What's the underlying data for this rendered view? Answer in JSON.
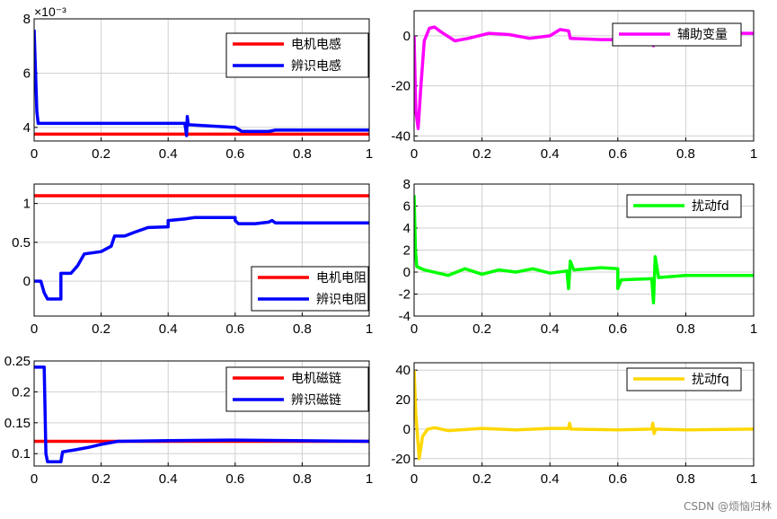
{
  "watermark": "CSDN @烦恼归林",
  "chart_data": [
    {
      "type": "line",
      "xlim": [
        0,
        1
      ],
      "ylim": [
        3.5,
        8
      ],
      "xticks": [
        "0",
        "0.2",
        "0.4",
        "0.6",
        "0.8",
        "1"
      ],
      "yticks": [
        "4",
        "6",
        "8"
      ],
      "ytick_values": [
        4,
        6,
        8
      ],
      "yexponent": "×10⁻³",
      "grid": true,
      "legend_position": "top-right",
      "series": [
        {
          "name": "电机电感",
          "color": "#ff0000",
          "points": [
            [
              0,
              3.75
            ],
            [
              1,
              3.75
            ]
          ]
        },
        {
          "name": "辨识电感",
          "color": "#0000ff",
          "points": [
            [
              0,
              7.6
            ],
            [
              0.003,
              6.5
            ],
            [
              0.008,
              4.6
            ],
            [
              0.012,
              4.15
            ],
            [
              0.45,
              4.15
            ],
            [
              0.455,
              3.7
            ],
            [
              0.457,
              4.4
            ],
            [
              0.46,
              4.1
            ],
            [
              0.6,
              4.0
            ],
            [
              0.62,
              3.85
            ],
            [
              0.7,
              3.85
            ],
            [
              0.72,
              3.9
            ],
            [
              1,
              3.9
            ]
          ]
        }
      ]
    },
    {
      "type": "line",
      "xlim": [
        0,
        1
      ],
      "ylim": [
        -42,
        10
      ],
      "xticks": [
        "0",
        "0.2",
        "0.4",
        "0.6",
        "0.8",
        "1"
      ],
      "yticks": [
        "-40",
        "-20",
        "0"
      ],
      "ytick_values": [
        -40,
        -20,
        0
      ],
      "grid": true,
      "legend_position": "top-right",
      "series": [
        {
          "name": "辅助变量",
          "color": "#ff00ff",
          "points": [
            [
              0,
              0
            ],
            [
              0.005,
              -30
            ],
            [
              0.012,
              -37
            ],
            [
              0.02,
              -20
            ],
            [
              0.03,
              -2
            ],
            [
              0.045,
              3
            ],
            [
              0.06,
              3.5
            ],
            [
              0.08,
              1.5
            ],
            [
              0.12,
              -2
            ],
            [
              0.16,
              -1
            ],
            [
              0.22,
              1
            ],
            [
              0.28,
              0.5
            ],
            [
              0.34,
              -1
            ],
            [
              0.4,
              0
            ],
            [
              0.43,
              2.5
            ],
            [
              0.455,
              2
            ],
            [
              0.46,
              -1
            ],
            [
              0.55,
              -1.5
            ],
            [
              0.7,
              -1.5
            ],
            [
              0.705,
              -4
            ],
            [
              0.71,
              -1
            ],
            [
              0.8,
              1
            ],
            [
              1,
              1
            ]
          ]
        }
      ]
    },
    {
      "type": "line",
      "xlim": [
        0,
        1
      ],
      "ylim": [
        -0.45,
        1.25
      ],
      "xticks": [
        "0",
        "0.2",
        "0.4",
        "0.6",
        "0.8",
        "1"
      ],
      "yticks": [
        "0",
        "0.5",
        "1"
      ],
      "ytick_values": [
        0,
        0.5,
        1
      ],
      "grid": true,
      "legend_position": "bottom-right",
      "series": [
        {
          "name": "电机电阻",
          "color": "#ff0000",
          "points": [
            [
              0,
              1.1
            ],
            [
              1,
              1.1
            ]
          ]
        },
        {
          "name": "辨识电阻",
          "color": "#0000ff",
          "points": [
            [
              0,
              0
            ],
            [
              0.02,
              0
            ],
            [
              0.03,
              -0.15
            ],
            [
              0.04,
              -0.23
            ],
            [
              0.08,
              -0.23
            ],
            [
              0.08,
              0.1
            ],
            [
              0.11,
              0.1
            ],
            [
              0.13,
              0.2
            ],
            [
              0.15,
              0.35
            ],
            [
              0.2,
              0.38
            ],
            [
              0.23,
              0.45
            ],
            [
              0.24,
              0.58
            ],
            [
              0.27,
              0.58
            ],
            [
              0.3,
              0.63
            ],
            [
              0.34,
              0.69
            ],
            [
              0.4,
              0.7
            ],
            [
              0.4,
              0.78
            ],
            [
              0.45,
              0.8
            ],
            [
              0.48,
              0.82
            ],
            [
              0.6,
              0.82
            ],
            [
              0.6,
              0.78
            ],
            [
              0.61,
              0.74
            ],
            [
              0.66,
              0.74
            ],
            [
              0.7,
              0.76
            ],
            [
              0.71,
              0.78
            ],
            [
              0.72,
              0.75
            ],
            [
              1,
              0.75
            ]
          ]
        }
      ]
    },
    {
      "type": "line",
      "xlim": [
        0,
        1
      ],
      "ylim": [
        -4,
        8
      ],
      "xticks": [
        "0",
        "0.2",
        "0.4",
        "0.6",
        "0.8",
        "1"
      ],
      "yticks": [
        "-4",
        "-2",
        "0",
        "2",
        "4",
        "6",
        "8"
      ],
      "ytick_values": [
        -4,
        -2,
        0,
        2,
        4,
        6,
        8
      ],
      "grid": true,
      "legend_position": "top-right",
      "series": [
        {
          "name": "扰动fd",
          "color": "#00ff00",
          "points": [
            [
              0,
              7
            ],
            [
              0.004,
              2
            ],
            [
              0.008,
              0.5
            ],
            [
              0.03,
              0.2
            ],
            [
              0.1,
              -0.3
            ],
            [
              0.15,
              0.3
            ],
            [
              0.2,
              -0.2
            ],
            [
              0.25,
              0.2
            ],
            [
              0.3,
              0
            ],
            [
              0.35,
              0.3
            ],
            [
              0.4,
              -0.1
            ],
            [
              0.45,
              0.1
            ],
            [
              0.455,
              -1.5
            ],
            [
              0.46,
              1
            ],
            [
              0.47,
              0.2
            ],
            [
              0.55,
              0.4
            ],
            [
              0.6,
              0.3
            ],
            [
              0.6,
              -1.5
            ],
            [
              0.61,
              -0.7
            ],
            [
              0.7,
              -0.6
            ],
            [
              0.705,
              -2.8
            ],
            [
              0.71,
              1.4
            ],
            [
              0.72,
              -0.5
            ],
            [
              0.8,
              -0.3
            ],
            [
              1,
              -0.3
            ]
          ]
        }
      ]
    },
    {
      "type": "line",
      "xlim": [
        0,
        1
      ],
      "ylim": [
        0.08,
        0.25
      ],
      "xticks": [
        "0",
        "0.2",
        "0.4",
        "0.6",
        "0.8",
        "1"
      ],
      "yticks": [
        "0.1",
        "0.15",
        "0.2",
        "0.25"
      ],
      "ytick_values": [
        0.1,
        0.15,
        0.2,
        0.25
      ],
      "grid": true,
      "legend_position": "top-right",
      "series": [
        {
          "name": "电机磁链",
          "color": "#ff0000",
          "points": [
            [
              0,
              0.12
            ],
            [
              1,
              0.12
            ]
          ]
        },
        {
          "name": "辨识磁链",
          "color": "#0000ff",
          "points": [
            [
              0,
              0.24
            ],
            [
              0.03,
              0.24
            ],
            [
              0.035,
              0.1
            ],
            [
              0.04,
              0.087
            ],
            [
              0.08,
              0.087
            ],
            [
              0.085,
              0.103
            ],
            [
              0.12,
              0.106
            ],
            [
              0.16,
              0.11
            ],
            [
              0.2,
              0.115
            ],
            [
              0.25,
              0.12
            ],
            [
              0.4,
              0.121
            ],
            [
              0.6,
              0.122
            ],
            [
              1,
              0.12
            ]
          ]
        }
      ]
    },
    {
      "type": "line",
      "xlim": [
        0,
        1
      ],
      "ylim": [
        -25,
        45
      ],
      "xticks": [
        "0",
        "0.2",
        "0.4",
        "0.6",
        "0.8",
        "1"
      ],
      "yticks": [
        "-20",
        "0",
        "20",
        "40"
      ],
      "ytick_values": [
        -20,
        0,
        20,
        40
      ],
      "grid": true,
      "legend_position": "top-right",
      "series": [
        {
          "name": "扰动fq",
          "color": "#ffd700",
          "points": [
            [
              0,
              40
            ],
            [
              0.005,
              10
            ],
            [
              0.01,
              -5
            ],
            [
              0.015,
              -20
            ],
            [
              0.025,
              -5
            ],
            [
              0.04,
              0
            ],
            [
              0.06,
              1
            ],
            [
              0.1,
              -1
            ],
            [
              0.2,
              0.5
            ],
            [
              0.3,
              -0.5
            ],
            [
              0.4,
              0.5
            ],
            [
              0.455,
              0.5
            ],
            [
              0.458,
              4
            ],
            [
              0.462,
              0
            ],
            [
              0.6,
              -0.5
            ],
            [
              0.7,
              0
            ],
            [
              0.703,
              4
            ],
            [
              0.707,
              -3
            ],
            [
              0.712,
              0
            ],
            [
              0.8,
              -0.5
            ],
            [
              1,
              0
            ]
          ]
        }
      ]
    }
  ]
}
